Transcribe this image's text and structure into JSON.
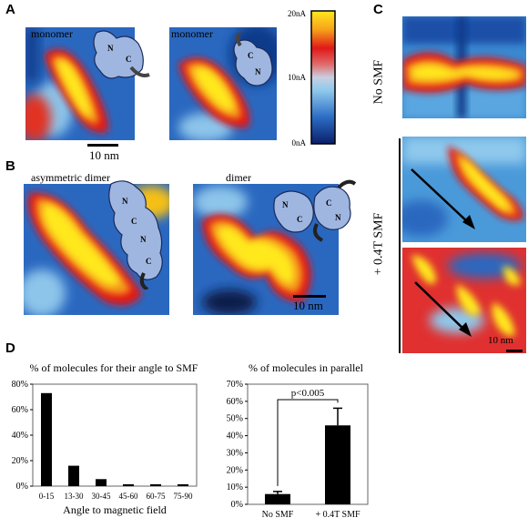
{
  "panels": {
    "A": {
      "label": "A",
      "left_title": "monomer",
      "right_title": "monomer",
      "scalebar": "10 nm",
      "left_domains": [
        "N",
        "C"
      ],
      "right_domains": [
        "C",
        "N"
      ],
      "colorbar": {
        "ticks": [
          "20nA",
          "10nA",
          "0nA"
        ]
      }
    },
    "B": {
      "label": "B",
      "left_title": "asymmetric dimer",
      "right_title": "dimer",
      "scalebar": "10 nm",
      "left_domains": [
        "N",
        "C",
        "N",
        "C"
      ],
      "right_domains": [
        "N",
        "C",
        "C",
        "N"
      ]
    },
    "C": {
      "label": "C",
      "top_label": "No SMF",
      "bottom_label": "+ 0.4T SMF",
      "scalebar": "10 nm"
    },
    "D": {
      "label": "D"
    }
  },
  "chart_data": [
    {
      "type": "bar",
      "title": "% of molecules for their angle to SMF",
      "xlabel": "Angle to magnetic field",
      "ylabel": "",
      "categories": [
        "0-15",
        "13-30",
        "30-45",
        "45-60",
        "60-75",
        "75-90"
      ],
      "values": [
        73,
        16,
        5.5,
        1.5,
        1.5,
        1.5
      ],
      "ylim": [
        0,
        80
      ],
      "yticks": [
        "0%",
        "20%",
        "40%",
        "60%",
        "80%"
      ],
      "grid": false
    },
    {
      "type": "bar",
      "title": "% of molecules in parallel",
      "xlabel": "",
      "ylabel": "",
      "categories": [
        "No SMF",
        "+ 0.4T SMF"
      ],
      "values": [
        6,
        46
      ],
      "errors": [
        1.5,
        10
      ],
      "ylim": [
        0,
        70
      ],
      "yticks": [
        "0%",
        "10%",
        "20%",
        "30%",
        "40%",
        "50%",
        "60%",
        "70%"
      ],
      "annotation": "p<0.005",
      "grid": false
    }
  ]
}
